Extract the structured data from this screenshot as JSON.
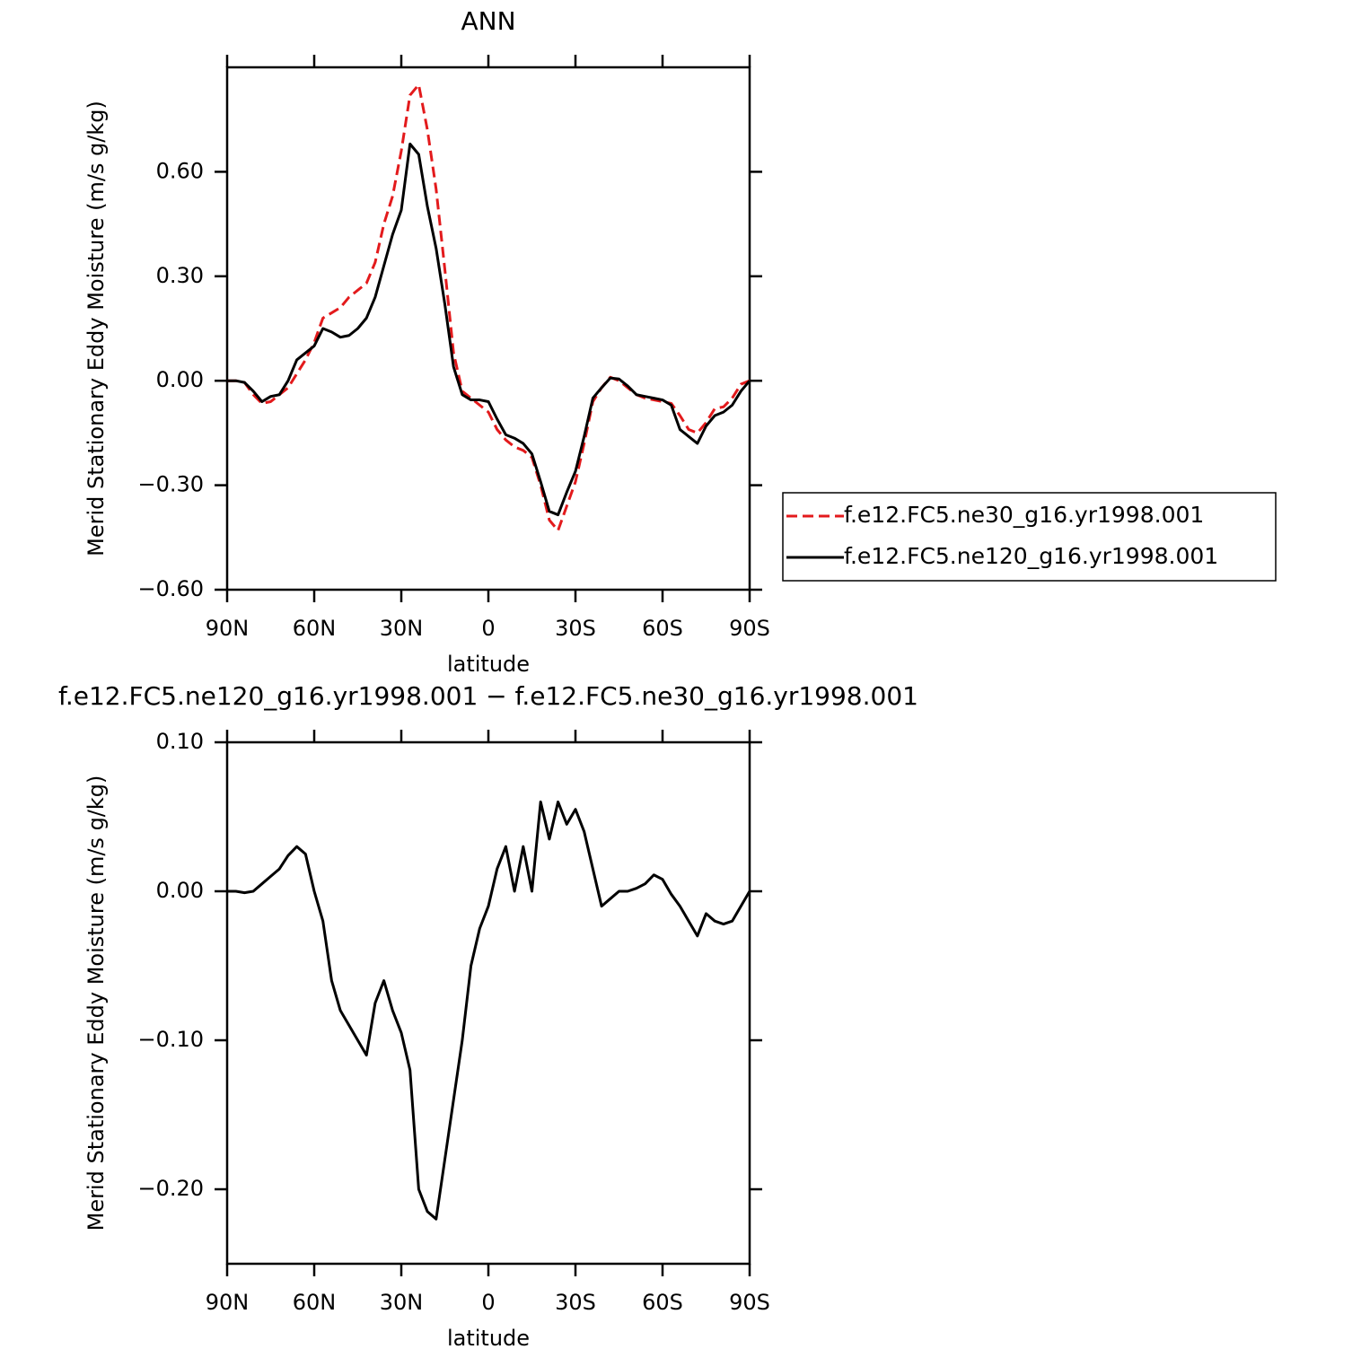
{
  "chart_data": [
    {
      "type": "line",
      "title": "ANN",
      "xlabel": "latitude",
      "ylabel": "Merid Stationary Eddy Moisture (m/s g/kg)",
      "x": [
        90,
        87,
        84,
        81,
        78,
        75,
        72,
        69,
        66,
        63,
        60,
        57,
        54,
        51,
        48,
        45,
        42,
        39,
        36,
        33,
        30,
        27,
        24,
        21,
        18,
        15,
        12,
        9,
        6,
        3,
        0,
        -3,
        -6,
        -9,
        -12,
        -15,
        -18,
        -21,
        -24,
        -27,
        -30,
        -33,
        -36,
        -39,
        -42,
        -45,
        -48,
        -51,
        -54,
        -57,
        -60,
        -63,
        -66,
        -69,
        -72,
        -75,
        -78,
        -81,
        -84,
        -87,
        -90
      ],
      "xlim": [
        90,
        -90
      ],
      "xticks": [
        {
          "value": 90,
          "label": "90N"
        },
        {
          "value": 60,
          "label": "60N"
        },
        {
          "value": 30,
          "label": "30N"
        },
        0,
        {
          "value": -30,
          "label": "30S"
        },
        {
          "value": -60,
          "label": "60S"
        },
        {
          "value": -90,
          "label": "90S"
        }
      ],
      "ylim": [
        -0.6,
        0.9
      ],
      "yticks": [
        {
          "value": -0.6,
          "label": "−0.60"
        },
        {
          "value": -0.3,
          "label": "−0.30"
        },
        {
          "value": 0,
          "label": "0.00"
        },
        {
          "value": 0.3,
          "label": "0.30"
        },
        {
          "value": 0.6,
          "label": "0.60"
        }
      ],
      "grid": false,
      "legend": "right",
      "series": [
        {
          "name": "f.e12.FC5.ne30_g16.yr1998.001",
          "color": "#e31a1c",
          "dash": "dashed",
          "values": [
            0,
            0,
            -0.005,
            -0.04,
            -0.065,
            -0.06,
            -0.04,
            -0.02,
            0.02,
            0.06,
            0.11,
            0.18,
            0.195,
            0.21,
            0.24,
            0.26,
            0.28,
            0.34,
            0.45,
            0.53,
            0.66,
            0.82,
            0.85,
            0.72,
            0.55,
            0.32,
            0.08,
            -0.03,
            -0.05,
            -0.07,
            -0.09,
            -0.14,
            -0.17,
            -0.19,
            -0.2,
            -0.22,
            -0.3,
            -0.4,
            -0.43,
            -0.36,
            -0.29,
            -0.18,
            -0.06,
            -0.02,
            0.01,
            0,
            -0.02,
            -0.04,
            -0.05,
            -0.055,
            -0.06,
            -0.065,
            -0.1,
            -0.14,
            -0.15,
            -0.12,
            -0.08,
            -0.075,
            -0.05,
            -0.01,
            0
          ]
        },
        {
          "name": "f.e12.FC5.ne120_g16.yr1998.001",
          "color": "#000000",
          "dash": "solid",
          "values": [
            0,
            0,
            -0.005,
            -0.03,
            -0.06,
            -0.045,
            -0.04,
            0,
            0.06,
            0.08,
            0.1,
            0.15,
            0.14,
            0.125,
            0.13,
            0.15,
            0.18,
            0.24,
            0.33,
            0.42,
            0.49,
            0.68,
            0.65,
            0.5,
            0.38,
            0.22,
            0.04,
            -0.04,
            -0.055,
            -0.055,
            -0.06,
            -0.11,
            -0.155,
            -0.165,
            -0.18,
            -0.21,
            -0.29,
            -0.375,
            -0.385,
            -0.32,
            -0.26,
            -0.16,
            -0.05,
            -0.02,
            0.008,
            0.005,
            -0.015,
            -0.04,
            -0.045,
            -0.05,
            -0.055,
            -0.07,
            -0.14,
            -0.16,
            -0.18,
            -0.13,
            -0.1,
            -0.09,
            -0.07,
            -0.03,
            0
          ]
        }
      ]
    },
    {
      "type": "line",
      "title": "f.e12.FC5.ne120_g16.yr1998.001 − f.e12.FC5.ne30_g16.yr1998.001",
      "xlabel": "latitude",
      "ylabel": "Merid Stationary Eddy Moisture (m/s g/kg)",
      "x": [
        90,
        87,
        84,
        81,
        78,
        75,
        72,
        69,
        66,
        63,
        60,
        57,
        54,
        51,
        48,
        45,
        42,
        39,
        36,
        33,
        30,
        27,
        24,
        21,
        18,
        15,
        12,
        9,
        6,
        3,
        0,
        -3,
        -6,
        -9,
        -12,
        -15,
        -18,
        -21,
        -24,
        -27,
        -30,
        -33,
        -36,
        -39,
        -42,
        -45,
        -48,
        -51,
        -54,
        -57,
        -60,
        -63,
        -66,
        -69,
        -72,
        -75,
        -78,
        -81,
        -84,
        -87,
        -90
      ],
      "xlim": [
        90,
        -90
      ],
      "xticks": [
        {
          "value": 90,
          "label": "90N"
        },
        {
          "value": 60,
          "label": "60N"
        },
        {
          "value": 30,
          "label": "30N"
        },
        0,
        {
          "value": -30,
          "label": "30S"
        },
        {
          "value": -60,
          "label": "60S"
        },
        {
          "value": -90,
          "label": "90S"
        }
      ],
      "ylim": [
        -0.25,
        0.1
      ],
      "yticks": [
        {
          "value": -0.2,
          "label": "−0.20"
        },
        {
          "value": -0.1,
          "label": "−0.10"
        },
        {
          "value": 0,
          "label": "0.00"
        },
        {
          "value": 0.1,
          "label": "0.10"
        }
      ],
      "grid": false,
      "series": [
        {
          "color": "#000000",
          "dash": "solid",
          "values": [
            0,
            0,
            -0.001,
            0,
            0.005,
            0.01,
            0.015,
            0.024,
            0.03,
            0.025,
            0,
            -0.02,
            -0.06,
            -0.08,
            -0.09,
            -0.1,
            -0.11,
            -0.075,
            -0.06,
            -0.08,
            -0.095,
            -0.12,
            -0.2,
            -0.215,
            -0.22,
            -0.18,
            -0.14,
            -0.1,
            -0.05,
            -0.025,
            -0.01,
            0.015,
            0.03,
            0,
            0.03,
            0,
            0.06,
            0.035,
            0.06,
            0.045,
            0.055,
            0.04,
            0.015,
            -0.01,
            -0.005,
            0,
            0,
            0.002,
            0.005,
            0.011,
            0.008,
            -0.002,
            -0.01,
            -0.02,
            -0.03,
            -0.015,
            -0.02,
            -0.022,
            -0.02,
            -0.01,
            0
          ]
        }
      ]
    }
  ]
}
